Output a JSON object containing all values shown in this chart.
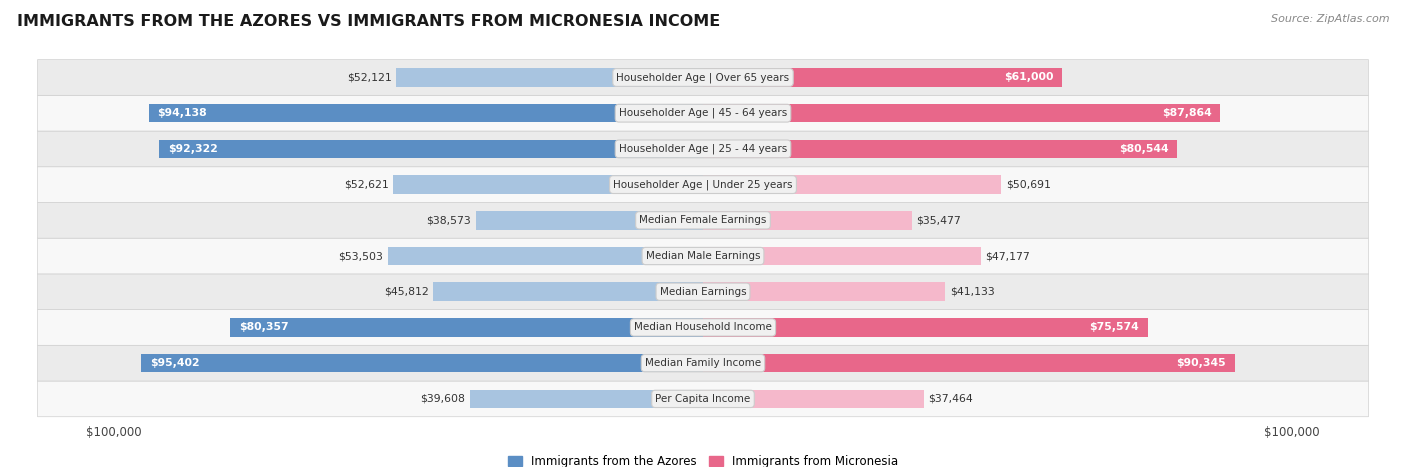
{
  "title": "IMMIGRANTS FROM THE AZORES VS IMMIGRANTS FROM MICRONESIA INCOME",
  "source": "Source: ZipAtlas.com",
  "categories": [
    "Per Capita Income",
    "Median Family Income",
    "Median Household Income",
    "Median Earnings",
    "Median Male Earnings",
    "Median Female Earnings",
    "Householder Age | Under 25 years",
    "Householder Age | 25 - 44 years",
    "Householder Age | 45 - 64 years",
    "Householder Age | Over 65 years"
  ],
  "azores_values": [
    39608,
    95402,
    80357,
    45812,
    53503,
    38573,
    52621,
    92322,
    94138,
    52121
  ],
  "micronesia_values": [
    37464,
    90345,
    75574,
    41133,
    47177,
    35477,
    50691,
    80544,
    87864,
    61000
  ],
  "azores_labels": [
    "$39,608",
    "$95,402",
    "$80,357",
    "$45,812",
    "$53,503",
    "$38,573",
    "$52,621",
    "$92,322",
    "$94,138",
    "$52,121"
  ],
  "micronesia_labels": [
    "$37,464",
    "$90,345",
    "$75,574",
    "$41,133",
    "$47,177",
    "$35,477",
    "$50,691",
    "$80,544",
    "$87,864",
    "$61,000"
  ],
  "max_value": 100000,
  "azores_color_light": "#a8c4e0",
  "azores_color_dark": "#5b8ec4",
  "micronesia_color_light": "#f5b8cb",
  "micronesia_color_dark": "#e8678a",
  "bg_color": "#ffffff",
  "row_bg_even": "#ebebeb",
  "row_bg_odd": "#f8f8f8",
  "row_border": "#d0d0d0",
  "label_box_color": "#f0f0f0",
  "label_box_border": "#cccccc",
  "legend_azores": "Immigrants from the Azores",
  "legend_micronesia": "Immigrants from Micronesia",
  "dark_threshold": 60000
}
